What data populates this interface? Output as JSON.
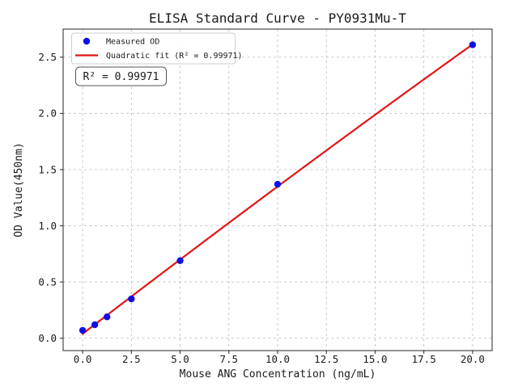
{
  "chart_data": {
    "type": "scatter",
    "title": "ELISA Standard Curve - PY0931Mu-T",
    "xlabel": "Mouse ANG Concentration (ng/mL)",
    "ylabel": "OD Value(450nm)",
    "xlim": [
      -1.0,
      21.0
    ],
    "ylim": [
      -0.11,
      2.75
    ],
    "grid": true,
    "grid_style": "dashed",
    "x_tick_values": [
      0.0,
      2.5,
      5.0,
      7.5,
      10.0,
      12.5,
      15.0,
      17.5,
      20.0
    ],
    "x_tick_labels": [
      "0.0",
      "2.5",
      "5.0",
      "7.5",
      "10.0",
      "12.5",
      "15.0",
      "17.5",
      "20.0"
    ],
    "y_tick_values": [
      0.0,
      0.5,
      1.0,
      1.5,
      2.0,
      2.5
    ],
    "y_tick_labels": [
      "0.0",
      "0.5",
      "1.0",
      "1.5",
      "2.0",
      "2.5"
    ],
    "series": [
      {
        "name": "Measured OD",
        "type": "scatter",
        "color": "#0f0fe6",
        "x": [
          0,
          0.625,
          1.25,
          2.5,
          5,
          10,
          20
        ],
        "y": [
          0.07,
          0.12,
          0.19,
          0.35,
          0.69,
          1.37,
          2.61
        ]
      },
      {
        "name": "Quadratic fit (R² = 0.99971)",
        "type": "line",
        "fit": "quadratic",
        "color": "#e41414",
        "x_range": [
          0,
          20
        ]
      }
    ],
    "legend": {
      "position": "upper left",
      "entries": [
        "Measured OD",
        "Quadratic fit (R² = 0.99971)"
      ]
    },
    "annotation": "R² = 0.99971",
    "r_squared": 0.99971,
    "colors": {
      "scatter": "#0f0fe6",
      "fit_line": "#e41414",
      "grid": "#c3c3c3",
      "spine": "#262626",
      "background": "#ffffff"
    }
  }
}
